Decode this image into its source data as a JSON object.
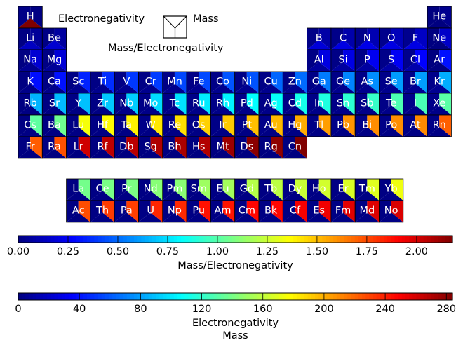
{
  "chart_data": {
    "type": "heatmap",
    "legend": {
      "top_label": "Electronegativity",
      "right_label": "Mass",
      "bottom_label": "Mass/Electronegativity"
    },
    "colorbars": [
      {
        "key": "ratio",
        "label_lines": [
          "Mass/Electronegativity"
        ],
        "vmin": 0,
        "vmax": 2.18,
        "ticks": [
          0,
          0.25,
          0.5,
          0.75,
          1.0,
          1.25,
          1.5,
          1.75,
          2.0
        ],
        "tick_labels": [
          "0.00",
          "0.25",
          "0.50",
          "0.75",
          "1.00",
          "1.25",
          "1.50",
          "1.75",
          "2.00"
        ]
      },
      {
        "key": "en_mass",
        "label_lines": [
          "Electronegativity",
          "Mass"
        ],
        "vmin": 0,
        "vmax": 284,
        "ticks": [
          0,
          40,
          80,
          120,
          160,
          200,
          240,
          280
        ],
        "tick_labels": [
          "0",
          "40",
          "80",
          "120",
          "160",
          "200",
          "240",
          "280"
        ]
      }
    ],
    "colormap": "jet",
    "elements": [
      {
        "symbol": "H",
        "row": 1,
        "col": 1,
        "electronegativity": 2.2,
        "mass": 1.008,
        "ratio": 2.18
      },
      {
        "symbol": "He",
        "row": 1,
        "col": 18,
        "electronegativity": 0,
        "mass": 4.0,
        "ratio": 0
      },
      {
        "symbol": "Li",
        "row": 2,
        "col": 1,
        "electronegativity": 0.98,
        "mass": 6.94,
        "ratio": 0.14
      },
      {
        "symbol": "Be",
        "row": 2,
        "col": 2,
        "electronegativity": 1.57,
        "mass": 9.01,
        "ratio": 0.17
      },
      {
        "symbol": "B",
        "row": 2,
        "col": 13,
        "electronegativity": 2.04,
        "mass": 10.81,
        "ratio": 0.19
      },
      {
        "symbol": "C",
        "row": 2,
        "col": 14,
        "electronegativity": 2.55,
        "mass": 12.01,
        "ratio": 0.21
      },
      {
        "symbol": "N",
        "row": 2,
        "col": 15,
        "electronegativity": 3.04,
        "mass": 14.01,
        "ratio": 0.22
      },
      {
        "symbol": "O",
        "row": 2,
        "col": 16,
        "electronegativity": 3.44,
        "mass": 16.0,
        "ratio": 0.21
      },
      {
        "symbol": "F",
        "row": 2,
        "col": 17,
        "electronegativity": 3.98,
        "mass": 19.0,
        "ratio": 0.21
      },
      {
        "symbol": "Ne",
        "row": 2,
        "col": 18,
        "electronegativity": 0,
        "mass": 20.18,
        "ratio": 0
      },
      {
        "symbol": "Na",
        "row": 3,
        "col": 1,
        "electronegativity": 0.93,
        "mass": 22.99,
        "ratio": 0.04
      },
      {
        "symbol": "Mg",
        "row": 3,
        "col": 2,
        "electronegativity": 1.31,
        "mass": 24.31,
        "ratio": 0.05
      },
      {
        "symbol": "Al",
        "row": 3,
        "col": 13,
        "electronegativity": 1.61,
        "mass": 26.98,
        "ratio": 0.06
      },
      {
        "symbol": "Si",
        "row": 3,
        "col": 14,
        "electronegativity": 1.9,
        "mass": 28.09,
        "ratio": 0.07
      },
      {
        "symbol": "P",
        "row": 3,
        "col": 15,
        "electronegativity": 2.19,
        "mass": 30.97,
        "ratio": 0.07
      },
      {
        "symbol": "S",
        "row": 3,
        "col": 16,
        "electronegativity": 2.58,
        "mass": 32.06,
        "ratio": 0.08
      },
      {
        "symbol": "Cl",
        "row": 3,
        "col": 17,
        "electronegativity": 3.16,
        "mass": 35.45,
        "ratio": 0.09
      },
      {
        "symbol": "Ar",
        "row": 3,
        "col": 18,
        "electronegativity": 0,
        "mass": 39.95,
        "ratio": 0
      },
      {
        "symbol": "K",
        "row": 4,
        "col": 1,
        "electronegativity": 0.82,
        "mass": 39.1,
        "ratio": 0.02
      },
      {
        "symbol": "Ca",
        "row": 4,
        "col": 2,
        "electronegativity": 1.0,
        "mass": 40.08,
        "ratio": 0.02
      },
      {
        "symbol": "Sc",
        "row": 4,
        "col": 3,
        "electronegativity": 1.36,
        "mass": 44.96,
        "ratio": 0.03
      },
      {
        "symbol": "Ti",
        "row": 4,
        "col": 4,
        "electronegativity": 1.54,
        "mass": 47.87,
        "ratio": 0.03
      },
      {
        "symbol": "V",
        "row": 4,
        "col": 5,
        "electronegativity": 1.63,
        "mass": 50.94,
        "ratio": 0.03
      },
      {
        "symbol": "Cr",
        "row": 4,
        "col": 6,
        "electronegativity": 1.66,
        "mass": 52.0,
        "ratio": 0.03
      },
      {
        "symbol": "Mn",
        "row": 4,
        "col": 7,
        "electronegativity": 1.55,
        "mass": 54.94,
        "ratio": 0.03
      },
      {
        "symbol": "Fe",
        "row": 4,
        "col": 8,
        "electronegativity": 1.83,
        "mass": 55.85,
        "ratio": 0.03
      },
      {
        "symbol": "Co",
        "row": 4,
        "col": 9,
        "electronegativity": 1.88,
        "mass": 58.93,
        "ratio": 0.03
      },
      {
        "symbol": "Ni",
        "row": 4,
        "col": 10,
        "electronegativity": 1.91,
        "mass": 58.69,
        "ratio": 0.03
      },
      {
        "symbol": "Cu",
        "row": 4,
        "col": 11,
        "electronegativity": 1.9,
        "mass": 63.55,
        "ratio": 0.03
      },
      {
        "symbol": "Zn",
        "row": 4,
        "col": 12,
        "electronegativity": 1.65,
        "mass": 65.38,
        "ratio": 0.03
      },
      {
        "symbol": "Ga",
        "row": 4,
        "col": 13,
        "electronegativity": 1.81,
        "mass": 69.72,
        "ratio": 0.03
      },
      {
        "symbol": "Ge",
        "row": 4,
        "col": 14,
        "electronegativity": 2.01,
        "mass": 72.63,
        "ratio": 0.03
      },
      {
        "symbol": "As",
        "row": 4,
        "col": 15,
        "electronegativity": 2.18,
        "mass": 74.92,
        "ratio": 0.03
      },
      {
        "symbol": "Se",
        "row": 4,
        "col": 16,
        "electronegativity": 2.55,
        "mass": 78.97,
        "ratio": 0.03
      },
      {
        "symbol": "Br",
        "row": 4,
        "col": 17,
        "electronegativity": 2.96,
        "mass": 79.9,
        "ratio": 0.04
      },
      {
        "symbol": "Kr",
        "row": 4,
        "col": 18,
        "electronegativity": 3.0,
        "mass": 83.8,
        "ratio": 0.04
      },
      {
        "symbol": "Rb",
        "row": 5,
        "col": 1,
        "electronegativity": 0.82,
        "mass": 85.47,
        "ratio": 0.01
      },
      {
        "symbol": "Sr",
        "row": 5,
        "col": 2,
        "electronegativity": 0.95,
        "mass": 87.62,
        "ratio": 0.01
      },
      {
        "symbol": "Y",
        "row": 5,
        "col": 3,
        "electronegativity": 1.22,
        "mass": 88.91,
        "ratio": 0.01
      },
      {
        "symbol": "Zr",
        "row": 5,
        "col": 4,
        "electronegativity": 1.33,
        "mass": 91.22,
        "ratio": 0.01
      },
      {
        "symbol": "Nb",
        "row": 5,
        "col": 5,
        "electronegativity": 1.6,
        "mass": 92.91,
        "ratio": 0.02
      },
      {
        "symbol": "Mo",
        "row": 5,
        "col": 6,
        "electronegativity": 2.16,
        "mass": 95.95,
        "ratio": 0.02
      },
      {
        "symbol": "Tc",
        "row": 5,
        "col": 7,
        "electronegativity": 1.9,
        "mass": 98.0,
        "ratio": 0.02
      },
      {
        "symbol": "Ru",
        "row": 5,
        "col": 8,
        "electronegativity": 2.2,
        "mass": 101.07,
        "ratio": 0.02
      },
      {
        "symbol": "Rh",
        "row": 5,
        "col": 9,
        "electronegativity": 2.28,
        "mass": 102.91,
        "ratio": 0.02
      },
      {
        "symbol": "Pd",
        "row": 5,
        "col": 10,
        "electronegativity": 2.2,
        "mass": 106.42,
        "ratio": 0.02
      },
      {
        "symbol": "Ag",
        "row": 5,
        "col": 11,
        "electronegativity": 1.93,
        "mass": 107.87,
        "ratio": 0.02
      },
      {
        "symbol": "Cd",
        "row": 5,
        "col": 12,
        "electronegativity": 1.69,
        "mass": 112.41,
        "ratio": 0.02
      },
      {
        "symbol": "In",
        "row": 5,
        "col": 13,
        "electronegativity": 1.78,
        "mass": 114.82,
        "ratio": 0.02
      },
      {
        "symbol": "Sn",
        "row": 5,
        "col": 14,
        "electronegativity": 1.96,
        "mass": 118.71,
        "ratio": 0.02
      },
      {
        "symbol": "Sb",
        "row": 5,
        "col": 15,
        "electronegativity": 2.05,
        "mass": 121.76,
        "ratio": 0.02
      },
      {
        "symbol": "Te",
        "row": 5,
        "col": 16,
        "electronegativity": 2.1,
        "mass": 127.6,
        "ratio": 0.02
      },
      {
        "symbol": "I",
        "row": 5,
        "col": 17,
        "electronegativity": 2.66,
        "mass": 126.9,
        "ratio": 0.02
      },
      {
        "symbol": "Xe",
        "row": 5,
        "col": 18,
        "electronegativity": 2.6,
        "mass": 131.29,
        "ratio": 0.02
      },
      {
        "symbol": "Cs",
        "row": 6,
        "col": 1,
        "electronegativity": 0.79,
        "mass": 132.91,
        "ratio": 0.01
      },
      {
        "symbol": "Ba",
        "row": 6,
        "col": 2,
        "electronegativity": 0.89,
        "mass": 137.33,
        "ratio": 0.01
      },
      {
        "symbol": "Lu",
        "row": 6,
        "col": 3,
        "electronegativity": 1.27,
        "mass": 174.97,
        "ratio": 0.01
      },
      {
        "symbol": "Hf",
        "row": 6,
        "col": 4,
        "electronegativity": 1.3,
        "mass": 178.49,
        "ratio": 0.01
      },
      {
        "symbol": "Ta",
        "row": 6,
        "col": 5,
        "electronegativity": 1.5,
        "mass": 180.95,
        "ratio": 0.01
      },
      {
        "symbol": "W",
        "row": 6,
        "col": 6,
        "electronegativity": 2.36,
        "mass": 183.84,
        "ratio": 0.01
      },
      {
        "symbol": "Re",
        "row": 6,
        "col": 7,
        "electronegativity": 1.9,
        "mass": 186.21,
        "ratio": 0.01
      },
      {
        "symbol": "Os",
        "row": 6,
        "col": 8,
        "electronegativity": 2.2,
        "mass": 190.23,
        "ratio": 0.01
      },
      {
        "symbol": "Ir",
        "row": 6,
        "col": 9,
        "electronegativity": 2.2,
        "mass": 192.22,
        "ratio": 0.01
      },
      {
        "symbol": "Pt",
        "row": 6,
        "col": 10,
        "electronegativity": 2.28,
        "mass": 195.08,
        "ratio": 0.01
      },
      {
        "symbol": "Au",
        "row": 6,
        "col": 11,
        "electronegativity": 2.54,
        "mass": 196.97,
        "ratio": 0.01
      },
      {
        "symbol": "Hg",
        "row": 6,
        "col": 12,
        "electronegativity": 2.0,
        "mass": 200.59,
        "ratio": 0.01
      },
      {
        "symbol": "Tl",
        "row": 6,
        "col": 13,
        "electronegativity": 1.62,
        "mass": 204.38,
        "ratio": 0.01
      },
      {
        "symbol": "Pb",
        "row": 6,
        "col": 14,
        "electronegativity": 2.33,
        "mass": 207.2,
        "ratio": 0.01
      },
      {
        "symbol": "Bi",
        "row": 6,
        "col": 15,
        "electronegativity": 2.02,
        "mass": 208.98,
        "ratio": 0.01
      },
      {
        "symbol": "Po",
        "row": 6,
        "col": 16,
        "electronegativity": 2.0,
        "mass": 209.0,
        "ratio": 0.01
      },
      {
        "symbol": "At",
        "row": 6,
        "col": 17,
        "electronegativity": 2.2,
        "mass": 210.0,
        "ratio": 0.01
      },
      {
        "symbol": "Rn",
        "row": 6,
        "col": 18,
        "electronegativity": 2.2,
        "mass": 222.0,
        "ratio": 0.01
      },
      {
        "symbol": "Fr",
        "row": 7,
        "col": 1,
        "electronegativity": 0.7,
        "mass": 223.0,
        "ratio": 0.0
      },
      {
        "symbol": "Ra",
        "row": 7,
        "col": 2,
        "electronegativity": 0.9,
        "mass": 226.0,
        "ratio": 0.0
      },
      {
        "symbol": "Lr",
        "row": 7,
        "col": 3,
        "electronegativity": 1.3,
        "mass": 262.0,
        "ratio": 0.0
      },
      {
        "symbol": "Rf",
        "row": 7,
        "col": 4,
        "electronegativity": 0,
        "mass": 267.0,
        "ratio": 0
      },
      {
        "symbol": "Db",
        "row": 7,
        "col": 5,
        "electronegativity": 0,
        "mass": 268.0,
        "ratio": 0
      },
      {
        "symbol": "Sg",
        "row": 7,
        "col": 6,
        "electronegativity": 0,
        "mass": 271.0,
        "ratio": 0
      },
      {
        "symbol": "Bh",
        "row": 7,
        "col": 7,
        "electronegativity": 0,
        "mass": 272.0,
        "ratio": 0
      },
      {
        "symbol": "Hs",
        "row": 7,
        "col": 8,
        "electronegativity": 0,
        "mass": 270.0,
        "ratio": 0
      },
      {
        "symbol": "Mt",
        "row": 7,
        "col": 9,
        "electronegativity": 0,
        "mass": 276.0,
        "ratio": 0
      },
      {
        "symbol": "Ds",
        "row": 7,
        "col": 10,
        "electronegativity": 0,
        "mass": 281.0,
        "ratio": 0
      },
      {
        "symbol": "Rg",
        "row": 7,
        "col": 11,
        "electronegativity": 0,
        "mass": 280.0,
        "ratio": 0
      },
      {
        "symbol": "Cn",
        "row": 7,
        "col": 12,
        "electronegativity": 0,
        "mass": 285.0,
        "ratio": 0
      },
      {
        "symbol": "La",
        "row": 9,
        "col": 3,
        "electronegativity": 1.1,
        "mass": 138.91,
        "ratio": 0.01
      },
      {
        "symbol": "Ce",
        "row": 9,
        "col": 4,
        "electronegativity": 1.12,
        "mass": 140.12,
        "ratio": 0.01
      },
      {
        "symbol": "Pr",
        "row": 9,
        "col": 5,
        "electronegativity": 1.13,
        "mass": 140.91,
        "ratio": 0.01
      },
      {
        "symbol": "Nd",
        "row": 9,
        "col": 6,
        "electronegativity": 1.14,
        "mass": 144.24,
        "ratio": 0.01
      },
      {
        "symbol": "Pm",
        "row": 9,
        "col": 7,
        "electronegativity": 1.13,
        "mass": 145.0,
        "ratio": 0.01
      },
      {
        "symbol": "Sm",
        "row": 9,
        "col": 8,
        "electronegativity": 1.17,
        "mass": 150.36,
        "ratio": 0.01
      },
      {
        "symbol": "Eu",
        "row": 9,
        "col": 9,
        "electronegativity": 1.2,
        "mass": 151.96,
        "ratio": 0.01
      },
      {
        "symbol": "Gd",
        "row": 9,
        "col": 10,
        "electronegativity": 1.2,
        "mass": 157.25,
        "ratio": 0.01
      },
      {
        "symbol": "Tb",
        "row": 9,
        "col": 11,
        "electronegativity": 1.1,
        "mass": 158.93,
        "ratio": 0.01
      },
      {
        "symbol": "Dy",
        "row": 9,
        "col": 12,
        "electronegativity": 1.22,
        "mass": 162.5,
        "ratio": 0.01
      },
      {
        "symbol": "Ho",
        "row": 9,
        "col": 13,
        "electronegativity": 1.23,
        "mass": 164.93,
        "ratio": 0.01
      },
      {
        "symbol": "Er",
        "row": 9,
        "col": 14,
        "electronegativity": 1.24,
        "mass": 167.26,
        "ratio": 0.01
      },
      {
        "symbol": "Tm",
        "row": 9,
        "col": 15,
        "electronegativity": 1.25,
        "mass": 168.93,
        "ratio": 0.01
      },
      {
        "symbol": "Yb",
        "row": 9,
        "col": 16,
        "electronegativity": 1.1,
        "mass": 173.05,
        "ratio": 0.01
      },
      {
        "symbol": "Ac",
        "row": 10,
        "col": 3,
        "electronegativity": 1.1,
        "mass": 227.0,
        "ratio": 0.0
      },
      {
        "symbol": "Th",
        "row": 10,
        "col": 4,
        "electronegativity": 1.3,
        "mass": 232.04,
        "ratio": 0.01
      },
      {
        "symbol": "Pa",
        "row": 10,
        "col": 5,
        "electronegativity": 1.5,
        "mass": 231.04,
        "ratio": 0.01
      },
      {
        "symbol": "U",
        "row": 10,
        "col": 6,
        "electronegativity": 1.38,
        "mass": 238.03,
        "ratio": 0.01
      },
      {
        "symbol": "Np",
        "row": 10,
        "col": 7,
        "electronegativity": 1.36,
        "mass": 237.0,
        "ratio": 0.01
      },
      {
        "symbol": "Pu",
        "row": 10,
        "col": 8,
        "electronegativity": 1.28,
        "mass": 244.0,
        "ratio": 0.01
      },
      {
        "symbol": "Am",
        "row": 10,
        "col": 9,
        "electronegativity": 1.3,
        "mass": 243.0,
        "ratio": 0.01
      },
      {
        "symbol": "Cm",
        "row": 10,
        "col": 10,
        "electronegativity": 1.3,
        "mass": 247.0,
        "ratio": 0.01
      },
      {
        "symbol": "Bk",
        "row": 10,
        "col": 11,
        "electronegativity": 1.3,
        "mass": 247.0,
        "ratio": 0.01
      },
      {
        "symbol": "Cf",
        "row": 10,
        "col": 12,
        "electronegativity": 1.3,
        "mass": 251.0,
        "ratio": 0.01
      },
      {
        "symbol": "Es",
        "row": 10,
        "col": 13,
        "electronegativity": 1.3,
        "mass": 252.0,
        "ratio": 0.01
      },
      {
        "symbol": "Fm",
        "row": 10,
        "col": 14,
        "electronegativity": 1.3,
        "mass": 257.0,
        "ratio": 0.01
      },
      {
        "symbol": "Md",
        "row": 10,
        "col": 15,
        "electronegativity": 1.3,
        "mass": 258.0,
        "ratio": 0.01
      },
      {
        "symbol": "No",
        "row": 10,
        "col": 16,
        "electronegativity": 1.3,
        "mass": 259.0,
        "ratio": 0.01
      }
    ]
  }
}
